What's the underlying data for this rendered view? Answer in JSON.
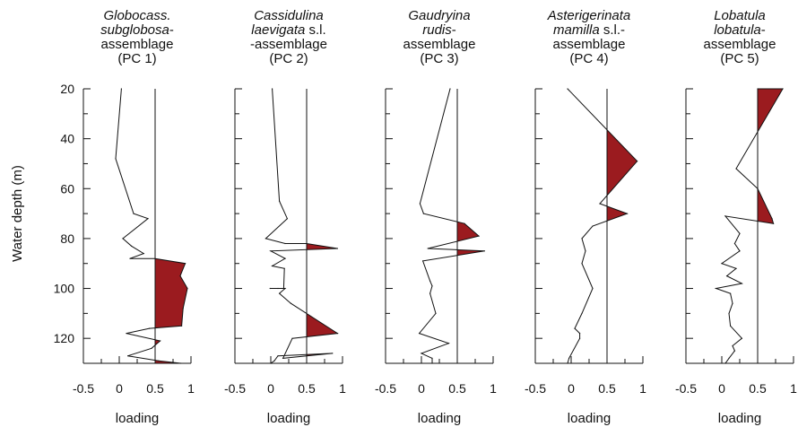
{
  "figure": {
    "ylabel": "Water depth (m)"
  },
  "chart_data": {
    "type": "line",
    "ylim": [
      20,
      130
    ],
    "yticks": [
      20,
      40,
      60,
      80,
      100,
      120
    ],
    "ytick_labels": [
      "20",
      "40",
      "60",
      "80",
      "100",
      "120"
    ],
    "xticks": [
      -0.5,
      0,
      0.5,
      1
    ],
    "xtick_labels": [
      "-0.5",
      "0",
      "0.5",
      "1"
    ],
    "xlim": [
      -0.5,
      1
    ],
    "reference_x": 0.5,
    "fill_color": "#9b1b1f",
    "line_color": "#111111",
    "panels": [
      {
        "title_lines": [
          {
            "segments": [
              {
                "text": "Globocass.",
                "italic": true
              }
            ]
          },
          {
            "segments": [
              {
                "text": "subglobosa",
                "italic": true
              },
              {
                "text": "-",
                "italic": false
              }
            ]
          },
          {
            "segments": [
              {
                "text": "assemblage",
                "italic": false
              }
            ]
          },
          {
            "segments": [
              {
                "text": "(PC 1)",
                "italic": false
              }
            ]
          }
        ],
        "xlabel": "loading",
        "series": {
          "x": [
            0.03,
            -0.05,
            0.2,
            0.4,
            0.05,
            0.17,
            0.34,
            0.15,
            0.5,
            0.92,
            0.85,
            0.95,
            0.89,
            0.87,
            0.42,
            0.1,
            0.57,
            0.45,
            0.12,
            0.55,
            0.86
          ],
          "y": [
            20,
            48,
            70,
            72,
            80,
            83,
            86,
            88,
            88,
            90,
            95,
            100,
            108,
            115,
            116,
            118,
            121,
            124,
            127,
            129,
            130
          ]
        }
      },
      {
        "title_lines": [
          {
            "segments": [
              {
                "text": "Cassidulina",
                "italic": true
              }
            ]
          },
          {
            "segments": [
              {
                "text": "laevigata",
                "italic": true
              },
              {
                "text": " s.l.",
                "italic": false
              }
            ]
          },
          {
            "segments": [
              {
                "text": "-assemblage",
                "italic": false
              }
            ]
          },
          {
            "segments": [
              {
                "text": "(PC 2)",
                "italic": false
              }
            ]
          }
        ],
        "xlabel": "loading",
        "series": {
          "x": [
            0.02,
            0.12,
            0.23,
            -0.07,
            0.2,
            0.5,
            0.93,
            0.0,
            0.2,
            0.02,
            0.19,
            0.18,
            -0.01,
            0.1,
            0.2,
            0.12,
            0.28,
            0.93,
            0.3,
            0.17,
            0.86,
            0.1,
            0.05,
            0.0
          ],
          "y": [
            20,
            65,
            72,
            80,
            82,
            82,
            84,
            85,
            88,
            91,
            92,
            100,
            100,
            100,
            100,
            102,
            106,
            118,
            120,
            128,
            126,
            127,
            129,
            130
          ]
        }
      },
      {
        "title_lines": [
          {
            "segments": [
              {
                "text": "Gaudryina",
                "italic": true
              }
            ]
          },
          {
            "segments": [
              {
                "text": "rudis",
                "italic": true
              },
              {
                "text": "-",
                "italic": false
              }
            ]
          },
          {
            "segments": [
              {
                "text": "assemblage",
                "italic": false
              }
            ]
          },
          {
            "segments": [
              {
                "text": "(PC 3)",
                "italic": false
              }
            ]
          }
        ],
        "xlabel": "loading",
        "series": {
          "x": [
            0.4,
            -0.02,
            0.03,
            0.6,
            0.8,
            0.09,
            0.88,
            0.02,
            0.12,
            0.15,
            0.12,
            0.2,
            -0.03,
            0.38,
            0.0,
            0.15,
            0.15
          ],
          "y": [
            20,
            66,
            70,
            74,
            79,
            84,
            85,
            89,
            97,
            99,
            102,
            110,
            118,
            122,
            126,
            128,
            130
          ]
        }
      },
      {
        "title_lines": [
          {
            "segments": [
              {
                "text": "Asterigerinata",
                "italic": true
              }
            ]
          },
          {
            "segments": [
              {
                "text": "mamilla",
                "italic": true
              },
              {
                "text": " s.l.-",
                "italic": false
              }
            ]
          },
          {
            "segments": [
              {
                "text": "assemblage",
                "italic": false
              }
            ]
          },
          {
            "segments": [
              {
                "text": "(PC 4)",
                "italic": false
              }
            ]
          }
        ],
        "xlabel": "loading",
        "series": {
          "x": [
            -0.05,
            0.92,
            0.4,
            0.78,
            0.3,
            0.15,
            0.2,
            0.15,
            0.3,
            0.15,
            0.05,
            0.12,
            0.12,
            -0.03,
            -0.05
          ],
          "y": [
            20,
            49,
            66,
            70,
            75,
            80,
            85,
            90,
            100,
            110,
            116,
            118,
            120,
            128,
            130
          ]
        }
      },
      {
        "title_lines": [
          {
            "segments": [
              {
                "text": "Lobatula",
                "italic": true
              }
            ]
          },
          {
            "segments": [
              {
                "text": "lobatula",
                "italic": true
              },
              {
                "text": "-",
                "italic": false
              }
            ]
          },
          {
            "segments": [
              {
                "text": "assemblage",
                "italic": false
              }
            ]
          },
          {
            "segments": [
              {
                "text": "(PC 5)",
                "italic": false
              }
            ]
          }
        ],
        "xlabel": "loading",
        "series": {
          "x": [
            0.5,
            0.85,
            0.2,
            0.5,
            0.7,
            0.72,
            0.05,
            0.25,
            0.18,
            0.25,
            0.0,
            0.2,
            0.07,
            0.28,
            -0.08,
            0.12,
            0.15,
            0.1,
            0.12,
            0.28,
            0.15,
            0.18,
            0.1,
            0.05
          ],
          "y": [
            20,
            20,
            52,
            60,
            72,
            74,
            71,
            78,
            82,
            85,
            90,
            92,
            95,
            98,
            100,
            102,
            106,
            110,
            115,
            120,
            123,
            125,
            128,
            130
          ]
        }
      }
    ]
  }
}
